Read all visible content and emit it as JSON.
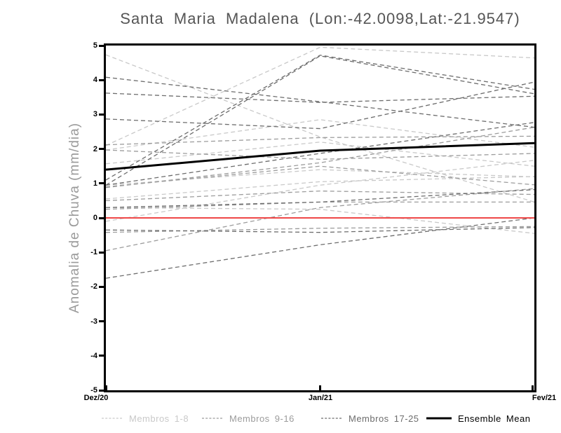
{
  "title": "Santa Maria Madalena (Lon:-42.0098,Lat:-21.9547)",
  "ylabel": "Anomalia de Chuva (mm/dia)",
  "chart_data": {
    "type": "line",
    "x_categories": [
      "Dez/20",
      "Jan/21",
      "Fev/21"
    ],
    "ylim": [
      -5,
      5
    ],
    "y_ticks": [
      "5",
      "4",
      "3",
      "2",
      "1",
      "0",
      "-1",
      "-2",
      "-3",
      "-4",
      "-5"
    ],
    "grid": "off",
    "legend_position": "bottom",
    "frame_color": "#000000",
    "zero_line": {
      "value": 0,
      "color": "#ef4747"
    },
    "groups": [
      {
        "name": "Membros 1-8",
        "color": "#c9c9c9"
      },
      {
        "name": "Membros 9-16",
        "color": "#9c9c9c"
      },
      {
        "name": "Membros 17-25",
        "color": "#6d6d6d"
      }
    ],
    "members": [
      {
        "group": 0,
        "values": [
          4.73,
          2.35,
          0.46
        ]
      },
      {
        "group": 0,
        "values": [
          2.1,
          4.95,
          4.64
        ]
      },
      {
        "group": 0,
        "values": [
          1.97,
          2.85,
          2.05
        ]
      },
      {
        "group": 0,
        "values": [
          1.57,
          2.2,
          1.5
        ]
      },
      {
        "group": 0,
        "values": [
          0.55,
          1.05,
          1.2
        ]
      },
      {
        "group": 0,
        "values": [
          -0.1,
          0.95,
          1.67
        ]
      },
      {
        "group": 0,
        "values": [
          0.3,
          0.25,
          -0.45
        ]
      },
      {
        "group": 0,
        "values": [
          0.95,
          1.4,
          1.19
        ]
      },
      {
        "group": 1,
        "values": [
          2.12,
          2.33,
          2.37
        ]
      },
      {
        "group": 1,
        "values": [
          0.88,
          1.6,
          2.63
        ]
      },
      {
        "group": 1,
        "values": [
          0.5,
          0.78,
          0.68
        ]
      },
      {
        "group": 1,
        "values": [
          -0.42,
          -0.3,
          -0.25
        ]
      },
      {
        "group": 1,
        "values": [
          -0.95,
          0.3,
          0.85
        ]
      },
      {
        "group": 1,
        "values": [
          1.97,
          1.7,
          1.87
        ]
      },
      {
        "group": 1,
        "values": [
          0.25,
          0.46,
          0.46
        ]
      },
      {
        "group": 1,
        "values": [
          0.9,
          1.5,
          0.96
        ]
      },
      {
        "group": 2,
        "values": [
          4.08,
          3.37,
          2.63
        ]
      },
      {
        "group": 2,
        "values": [
          3.62,
          3.35,
          3.53
        ]
      },
      {
        "group": 2,
        "values": [
          0.95,
          4.7,
          3.6
        ]
      },
      {
        "group": 2,
        "values": [
          2.87,
          2.59,
          3.94
        ]
      },
      {
        "group": 2,
        "values": [
          1.1,
          4.72,
          3.73
        ]
      },
      {
        "group": 2,
        "values": [
          0.95,
          1.87,
          2.77
        ]
      },
      {
        "group": 2,
        "values": [
          0.3,
          0.46,
          0.82
        ]
      },
      {
        "group": 2,
        "values": [
          -0.35,
          -0.42,
          -0.28
        ]
      },
      {
        "group": 2,
        "values": [
          -1.75,
          -0.78,
          0.0
        ]
      }
    ],
    "mean": {
      "name": "Ensemble Mean",
      "color": "#000000",
      "values": [
        1.4,
        1.95,
        2.17
      ]
    },
    "legend": [
      {
        "label": "Membros 1-8",
        "color": "#c9c9c9",
        "style": "dashed"
      },
      {
        "label": "Membros 9-16",
        "color": "#9c9c9c",
        "style": "dashed"
      },
      {
        "label": "Membros 17-25",
        "color": "#6d6d6d",
        "style": "dashed"
      },
      {
        "label": "Ensemble Mean",
        "color": "#000000",
        "style": "solid"
      }
    ]
  }
}
